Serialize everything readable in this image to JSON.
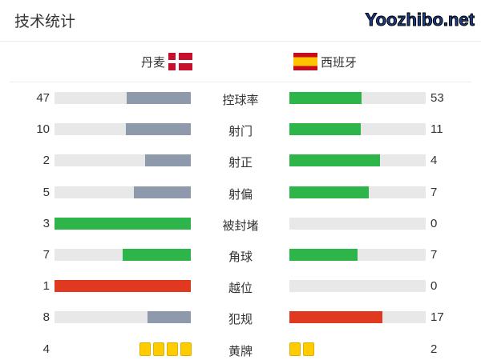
{
  "title": "技术统计",
  "home": {
    "name": "丹麦",
    "flag": "denmark-flag"
  },
  "away": {
    "name": "西班牙",
    "flag": "spain-flag"
  },
  "colors": {
    "gray": "#8e9aab",
    "green": "#2db54a",
    "red": "#e0391f",
    "track": "#e8e8e8",
    "yellow": "#ffcc00"
  },
  "stats": [
    {
      "label": "控球率",
      "home": "47",
      "away": "53",
      "home_pct": 47,
      "away_pct": 53,
      "home_color": "#8e9aab",
      "away_color": "#2db54a"
    },
    {
      "label": "射门",
      "home": "10",
      "away": "11",
      "home_pct": 47.6,
      "away_pct": 52.4,
      "home_color": "#8e9aab",
      "away_color": "#2db54a"
    },
    {
      "label": "射正",
      "home": "2",
      "away": "4",
      "home_pct": 33.3,
      "away_pct": 66.7,
      "home_color": "#8e9aab",
      "away_color": "#2db54a"
    },
    {
      "label": "射偏",
      "home": "5",
      "away": "7",
      "home_pct": 41.7,
      "away_pct": 58.3,
      "home_color": "#8e9aab",
      "away_color": "#2db54a"
    },
    {
      "label": "被封堵",
      "home": "3",
      "away": "0",
      "home_pct": 100,
      "away_pct": 0,
      "home_color": "#2db54a",
      "away_color": "#2db54a"
    },
    {
      "label": "角球",
      "home": "7",
      "away": "7",
      "home_pct": 50,
      "away_pct": 50,
      "home_color": "#2db54a",
      "away_color": "#2db54a"
    },
    {
      "label": "越位",
      "home": "1",
      "away": "0",
      "home_pct": 100,
      "away_pct": 0,
      "home_color": "#e0391f",
      "away_color": "#e0391f"
    },
    {
      "label": "犯规",
      "home": "8",
      "away": "17",
      "home_pct": 32,
      "away_pct": 68,
      "home_color": "#8e9aab",
      "away_color": "#e0391f"
    }
  ],
  "yellow": {
    "label": "黄牌",
    "home": "4",
    "away": "2",
    "home_cards": 4,
    "away_cards": 2
  },
  "watermark": "Yoozhibo.net"
}
